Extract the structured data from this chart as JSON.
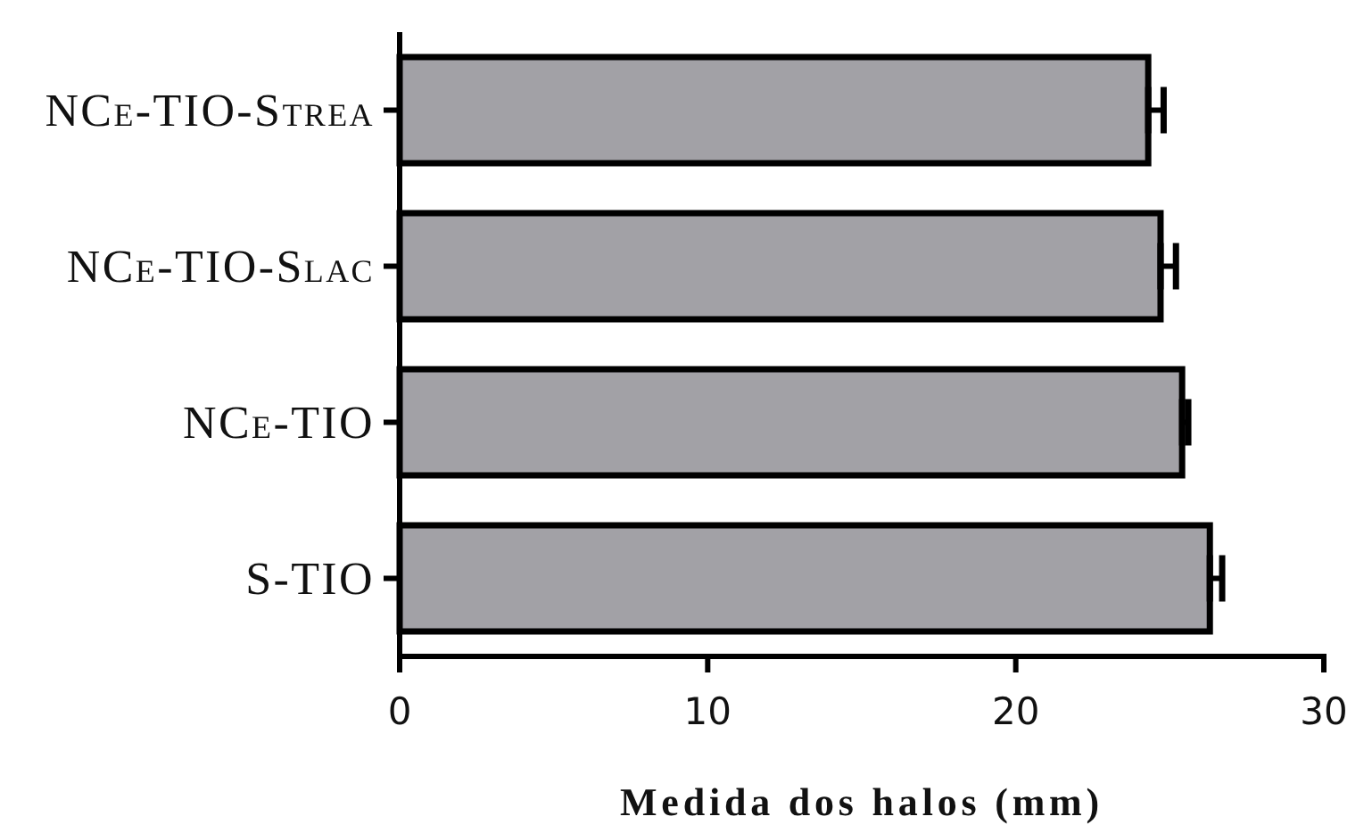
{
  "chart_data": {
    "type": "bar",
    "orientation": "horizontal",
    "categories": [
      "NCe-TIO-Strea",
      "NCe-TIO-Slac",
      "NCe-TIO",
      "S-TIO"
    ],
    "values": [
      24.3,
      24.7,
      25.4,
      26.3
    ],
    "errors": [
      [
        24.3,
        24.8
      ],
      [
        24.7,
        25.2
      ],
      [
        25.4,
        25.6
      ],
      [
        26.3,
        26.7
      ]
    ],
    "color": "#a2a1a6",
    "xlim": [
      0,
      30
    ],
    "xticks": [
      0,
      10,
      20,
      30
    ],
    "xlabel": "Medida dos halos (mm)"
  }
}
